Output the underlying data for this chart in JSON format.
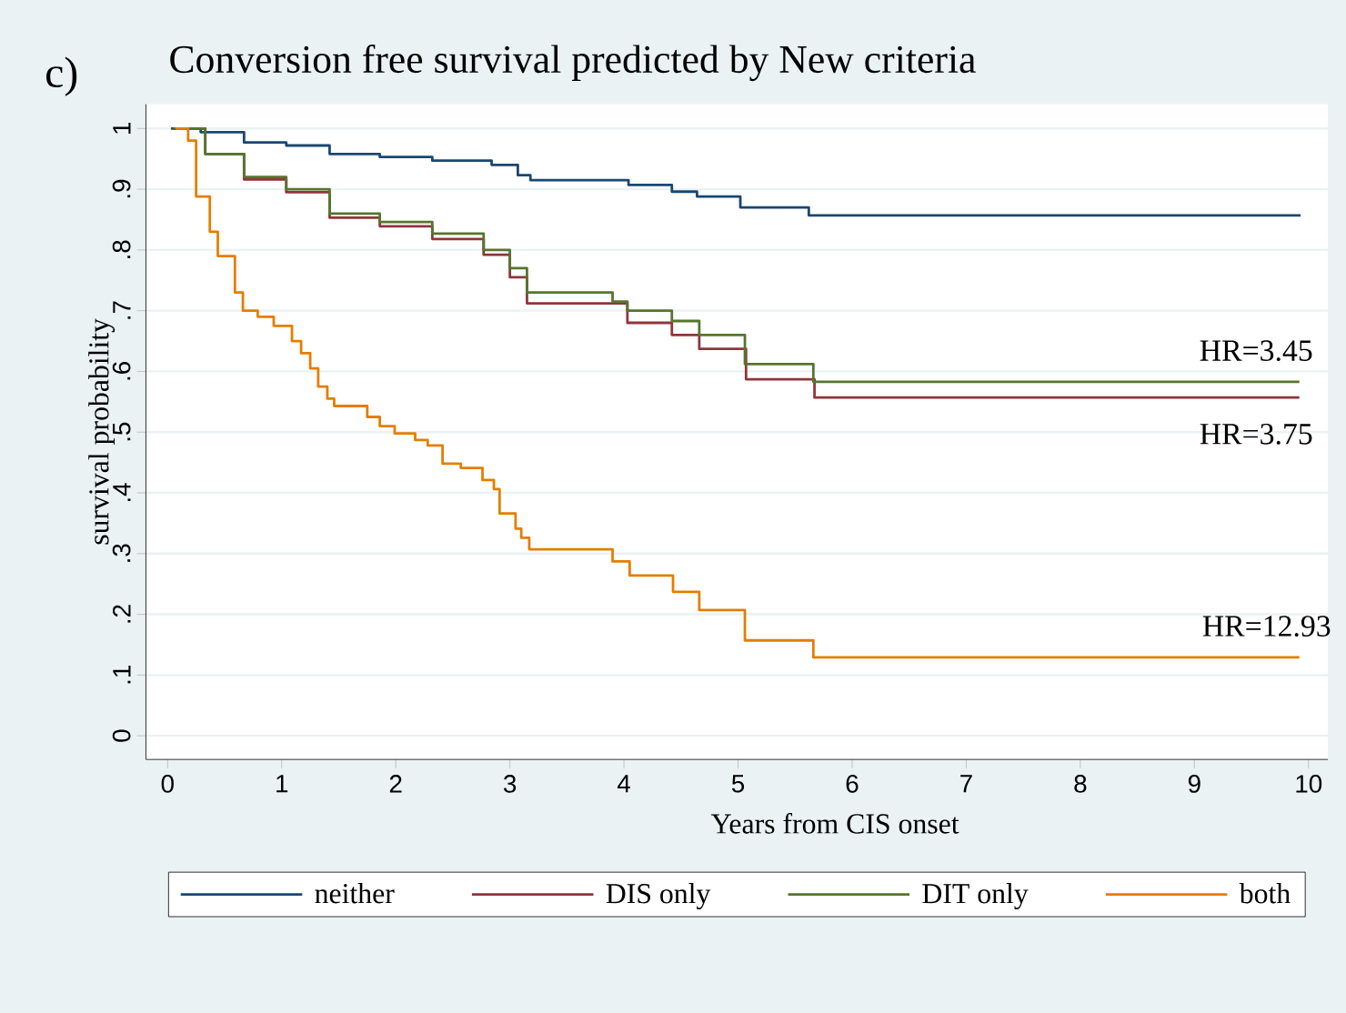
{
  "chart_data": {
    "type": "step",
    "title": "Conversion free survival predicted by New criteria",
    "xlabel": "Years from CIS onset",
    "ylabel": "survival probability",
    "annotations": [
      "c)",
      "HR=3.45",
      "HR=3.75",
      "HR=12.93"
    ],
    "xlim": [
      -0.19,
      10.17
    ],
    "ylim": [
      -0.039,
      1.04
    ],
    "xticks": [
      0,
      1,
      2,
      3,
      4,
      5,
      6,
      7,
      8,
      9,
      10
    ],
    "yticks": [
      {
        "value": 0,
        "label": "0"
      },
      {
        "value": 0.1,
        "label": ".1"
      },
      {
        "value": 0.2,
        "label": ".2"
      },
      {
        "value": 0.3,
        "label": ".3"
      },
      {
        "value": 0.4,
        "label": ".4"
      },
      {
        "value": 0.5,
        "label": ".5"
      },
      {
        "value": 0.6,
        "label": ".6"
      },
      {
        "value": 0.7,
        "label": ".7"
      },
      {
        "value": 0.8,
        "label": ".8"
      },
      {
        "value": 0.9,
        "label": ".9"
      },
      {
        "value": 1,
        "label": "1"
      }
    ],
    "grid": "y",
    "legend": "bottom",
    "marker": "none",
    "line_style": "solid",
    "series": [
      {
        "name": "neither",
        "color": "#1a476f",
        "x": [
          0.03,
          0.29,
          0.67,
          1.04,
          1.42,
          1.86,
          2.32,
          2.84,
          3.07,
          3.18,
          4.04,
          4.42,
          4.64,
          5.02,
          5.62,
          9.93
        ],
        "values": [
          1,
          0.994,
          0.977,
          0.972,
          0.958,
          0.953,
          0.947,
          0.94,
          0.923,
          0.915,
          0.907,
          0.896,
          0.888,
          0.87,
          0.857,
          0.857
        ]
      },
      {
        "name": "DIS only",
        "color": "#90353b",
        "x": [
          0.05,
          0.33,
          0.67,
          1.04,
          1.42,
          1.86,
          2.32,
          2.77,
          3.0,
          3.15,
          4.03,
          4.42,
          4.66,
          5.07,
          5.67,
          9.92
        ],
        "values": [
          1,
          0.958,
          0.916,
          0.895,
          0.853,
          0.839,
          0.818,
          0.792,
          0.755,
          0.712,
          0.68,
          0.66,
          0.637,
          0.587,
          0.557,
          0.557
        ]
      },
      {
        "name": "DIT only",
        "color": "#55752f",
        "x": [
          0.05,
          0.33,
          0.67,
          1.04,
          1.42,
          1.86,
          2.32,
          2.77,
          3.0,
          3.15,
          3.9,
          4.03,
          4.42,
          4.66,
          5.06,
          5.66,
          9.92
        ],
        "values": [
          1,
          0.958,
          0.92,
          0.9,
          0.86,
          0.846,
          0.827,
          0.8,
          0.77,
          0.73,
          0.715,
          0.7,
          0.683,
          0.66,
          0.612,
          0.583,
          0.583
        ]
      },
      {
        "name": "both",
        "color": "#e37e00",
        "x": [
          0.07,
          0.18,
          0.25,
          0.37,
          0.44,
          0.59,
          0.66,
          0.79,
          0.93,
          1.09,
          1.17,
          1.25,
          1.32,
          1.4,
          1.46,
          1.75,
          1.86,
          1.99,
          2.17,
          2.28,
          2.41,
          2.57,
          2.76,
          2.86,
          2.91,
          3.05,
          3.1,
          3.17,
          3.9,
          4.05,
          4.43,
          4.66,
          5.06,
          5.66,
          9.92
        ],
        "values": [
          1,
          0.98,
          0.888,
          0.83,
          0.79,
          0.73,
          0.7,
          0.69,
          0.675,
          0.65,
          0.63,
          0.605,
          0.575,
          0.555,
          0.543,
          0.525,
          0.51,
          0.498,
          0.487,
          0.478,
          0.448,
          0.441,
          0.421,
          0.406,
          0.366,
          0.341,
          0.326,
          0.307,
          0.287,
          0.264,
          0.237,
          0.207,
          0.157,
          0.129,
          0.129
        ]
      }
    ]
  }
}
